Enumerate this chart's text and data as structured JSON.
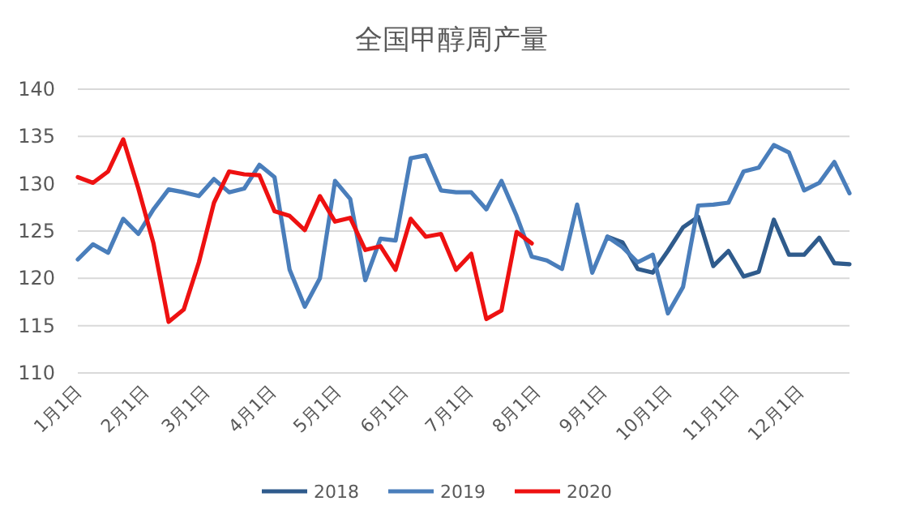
{
  "chart_data": {
    "type": "line",
    "title": "全国甲醇周产量",
    "x": [
      "--01-01",
      "--01-08",
      "--01-15",
      "--01-22",
      "--01-29",
      "--02-05",
      "--02-12",
      "--02-19",
      "--02-26",
      "--03-05",
      "--03-12",
      "--03-19",
      "--03-26",
      "--04-02",
      "--04-09",
      "--04-16",
      "--04-23",
      "--04-30",
      "--05-07",
      "--05-14",
      "--05-21",
      "--05-28",
      "--06-04",
      "--06-11",
      "--06-18",
      "--06-25",
      "--07-02",
      "--07-09",
      "--07-16",
      "--07-23",
      "--07-30",
      "--08-06",
      "--08-13",
      "--08-20",
      "--08-27",
      "--09-03",
      "--09-10",
      "--09-17",
      "--09-24",
      "--10-01",
      "--10-08",
      "--10-15",
      "--10-22",
      "--10-29",
      "--11-05",
      "--11-12",
      "--11-19",
      "--11-26",
      "--12-03",
      "--12-10",
      "--12-17",
      "--12-24"
    ],
    "series": [
      {
        "name": "2018",
        "color": "#2f5b8c",
        "values": [
          null,
          null,
          null,
          null,
          null,
          null,
          null,
          null,
          null,
          null,
          null,
          null,
          null,
          null,
          null,
          null,
          null,
          null,
          null,
          null,
          null,
          null,
          null,
          null,
          null,
          null,
          null,
          null,
          null,
          null,
          null,
          null,
          null,
          null,
          null,
          124.4,
          123.8,
          121.0,
          120.6,
          122.9,
          125.4,
          126.5,
          121.3,
          122.9,
          120.2,
          120.7,
          126.2,
          122.5,
          122.5,
          124.3,
          121.6,
          121.5
        ]
      },
      {
        "name": "2019",
        "color": "#4a7ebb",
        "values": [
          122.0,
          123.6,
          122.7,
          126.3,
          124.7,
          127.3,
          129.4,
          129.1,
          128.7,
          130.5,
          129.1,
          129.5,
          132.0,
          130.7,
          120.9,
          117.0,
          120.0,
          130.3,
          128.4,
          119.8,
          124.2,
          124.0,
          132.7,
          133.0,
          129.3,
          129.1,
          129.1,
          127.3,
          130.3,
          126.6,
          122.3,
          121.9,
          121.0,
          127.8,
          120.6,
          124.4,
          123.3,
          121.7,
          122.5,
          116.3,
          119.1,
          127.7,
          127.8,
          128.0,
          131.3,
          131.7,
          134.1,
          133.3,
          129.3,
          130.1,
          132.3,
          129.0
        ]
      },
      {
        "name": "2020",
        "color": "#ee1111",
        "values": [
          130.7,
          130.1,
          131.3,
          134.7,
          129.5,
          123.7,
          115.4,
          116.7,
          121.7,
          128.0,
          131.3,
          131.0,
          130.9,
          127.1,
          126.6,
          125.1,
          128.7,
          126.0,
          126.4,
          123.0,
          123.4,
          120.9,
          126.3,
          124.4,
          124.7,
          120.9,
          122.6,
          115.7,
          116.6,
          124.9,
          123.7,
          null,
          null,
          null,
          null,
          null,
          null,
          null,
          null,
          null,
          null,
          null,
          null,
          null,
          null,
          null,
          null,
          null,
          null,
          null,
          null,
          null
        ]
      }
    ],
    "xlim": [
      "--01-01",
      "--12-24"
    ],
    "xticks": [
      {
        "value": "--01-01",
        "label": "1月1日"
      },
      {
        "value": "--02-01",
        "label": "2月1日"
      },
      {
        "value": "--03-01",
        "label": "3月1日"
      },
      {
        "value": "--04-01",
        "label": "4月1日"
      },
      {
        "value": "--05-01",
        "label": "5月1日"
      },
      {
        "value": "--06-01",
        "label": "6月1日"
      },
      {
        "value": "--07-01",
        "label": "7月1日"
      },
      {
        "value": "--08-01",
        "label": "8月1日"
      },
      {
        "value": "--09-01",
        "label": "9月1日"
      },
      {
        "value": "--10-01",
        "label": "10月1日"
      },
      {
        "value": "--11-01",
        "label": "11月1日"
      },
      {
        "value": "--12-01",
        "label": "12月1日"
      }
    ],
    "ylim": [
      110,
      140
    ],
    "yticks": [
      110,
      115,
      120,
      125,
      130,
      135,
      140
    ],
    "grid": "y",
    "legend": "bottom",
    "marker": "none",
    "line_style": "solid"
  }
}
